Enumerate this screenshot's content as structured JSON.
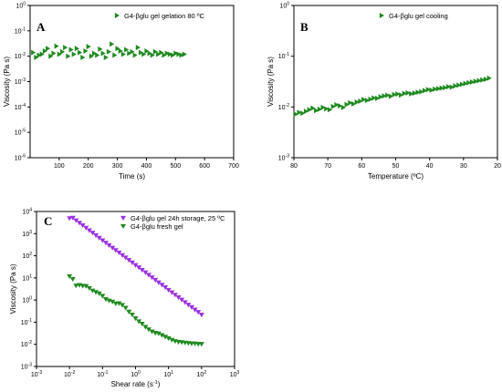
{
  "chart_data": [
    {
      "type": "scatter",
      "panel_label": "A",
      "xlabel": "Time (s)",
      "ylabel": "Viscosity (Pa s)",
      "xlim": [
        0,
        700
      ],
      "ylim": [
        1e-06,
        1
      ],
      "yscale": "log",
      "x_ticks": [
        "100",
        "200",
        "300",
        "400",
        "500",
        "600",
        "700"
      ],
      "y_ticks": [
        "10^-6",
        "10^-5",
        "10^-4",
        "10^-3",
        "10^-2",
        "10^-1",
        "10^0"
      ],
      "legend_position": "top-right",
      "color": "#1f8a1f",
      "marker": "triangle-right",
      "series": [
        {
          "name": "G4-βglu gel gelation 80 ºC",
          "x": [
            10,
            20,
            30,
            40,
            50,
            60,
            70,
            80,
            90,
            100,
            110,
            120,
            130,
            140,
            150,
            160,
            170,
            180,
            190,
            200,
            210,
            220,
            230,
            240,
            250,
            260,
            270,
            280,
            290,
            300,
            310,
            320,
            330,
            340,
            350,
            360,
            370,
            380,
            390,
            400,
            410,
            420,
            430,
            440,
            450,
            460,
            470,
            480,
            490,
            500,
            510,
            520,
            530
          ],
          "y": [
            0.014,
            0.009,
            0.011,
            0.012,
            0.016,
            0.02,
            0.01,
            0.013,
            0.025,
            0.012,
            0.015,
            0.022,
            0.01,
            0.018,
            0.012,
            0.02,
            0.014,
            0.009,
            0.016,
            0.024,
            0.01,
            0.013,
            0.011,
            0.019,
            0.013,
            0.009,
            0.015,
            0.03,
            0.011,
            0.02,
            0.016,
            0.012,
            0.018,
            0.013,
            0.015,
            0.011,
            0.022,
            0.014,
            0.012,
            0.016,
            0.013,
            0.011,
            0.015,
            0.012,
            0.014,
            0.011,
            0.013,
            0.012,
            0.011,
            0.013,
            0.012,
            0.011,
            0.012
          ]
        }
      ]
    },
    {
      "type": "scatter",
      "panel_label": "B",
      "xlabel": "Temperature (ºC)",
      "ylabel": "Viscosity  (Pa s)",
      "xlim": [
        80,
        20
      ],
      "ylim": [
        0.001,
        1
      ],
      "yscale": "log",
      "x_ticks": [
        "80",
        "70",
        "60",
        "50",
        "40",
        "30",
        "20"
      ],
      "y_ticks": [
        "10^-3",
        "10^-2",
        "10^-1",
        "10^0"
      ],
      "legend_position": "top-right",
      "color": "#1f8a1f",
      "marker": "triangle-right",
      "series": [
        {
          "name": "G4-βglu gel cooling",
          "x": [
            79.5,
            78.5,
            77.5,
            76.5,
            75.5,
            74.5,
            73.5,
            72.5,
            71.5,
            70.5,
            69.5,
            68.5,
            67.5,
            66.5,
            65.5,
            64.5,
            63.5,
            62.5,
            61.5,
            60.5,
            59.5,
            58.5,
            57.5,
            56.5,
            55.5,
            54.5,
            53.5,
            52.5,
            51.5,
            50.5,
            49.5,
            48.5,
            47.5,
            46.5,
            45.5,
            44.5,
            43.5,
            42.5,
            41.5,
            40.5,
            39.5,
            38.5,
            37.5,
            36.5,
            35.5,
            34.5,
            33.5,
            32.5,
            31.5,
            30.5,
            29.5,
            28.5,
            27.5,
            26.5,
            25.5,
            24.5,
            23.5,
            22.5
          ],
          "y": [
            0.0072,
            0.0078,
            0.0075,
            0.0082,
            0.0088,
            0.0095,
            0.0085,
            0.009,
            0.0098,
            0.0092,
            0.0088,
            0.0102,
            0.011,
            0.0105,
            0.0098,
            0.0112,
            0.012,
            0.0115,
            0.0125,
            0.013,
            0.014,
            0.0135,
            0.0142,
            0.015,
            0.0148,
            0.0158,
            0.0165,
            0.017,
            0.0162,
            0.0175,
            0.018,
            0.0172,
            0.0185,
            0.019,
            0.0182,
            0.0188,
            0.0195,
            0.02,
            0.021,
            0.022,
            0.0215,
            0.0225,
            0.023,
            0.0235,
            0.024,
            0.025,
            0.0245,
            0.026,
            0.027,
            0.028,
            0.029,
            0.03,
            0.031,
            0.032,
            0.033,
            0.034,
            0.035,
            0.037
          ]
        }
      ]
    },
    {
      "type": "scatter",
      "panel_label": "C",
      "xlabel": "Shear rate (s⁻¹)",
      "ylabel": "Viscosity (Pa s)",
      "xlim": [
        0.001,
        1000
      ],
      "ylim": [
        0.001,
        10000
      ],
      "xscale": "log",
      "yscale": "log",
      "x_ticks": [
        "10^-3",
        "10^-2",
        "10^-1",
        "10^0",
        "10^1",
        "10^2",
        "10^3"
      ],
      "y_ticks": [
        "10^-3",
        "10^-2",
        "10^-1",
        "10^0",
        "10^1",
        "10^2",
        "10^3",
        "10^4"
      ],
      "legend_position": "top-right",
      "marker": "triangle-down",
      "series": [
        {
          "name": "G4-βglu gel 24h storage, 25 ºC",
          "color": "#9b30e0",
          "x": [
            0.01,
            0.0126,
            0.0158,
            0.02,
            0.0251,
            0.0316,
            0.0398,
            0.0501,
            0.0631,
            0.0794,
            0.1,
            0.126,
            0.158,
            0.2,
            0.251,
            0.316,
            0.398,
            0.501,
            0.631,
            0.794,
            1,
            1.26,
            1.58,
            2,
            2.51,
            3.16,
            3.98,
            5.01,
            6.31,
            7.94,
            10,
            12.6,
            15.8,
            20,
            25.1,
            31.6,
            39.8,
            50.1,
            63.1,
            79.4,
            100
          ],
          "y": [
            5000,
            5200,
            4000,
            3100,
            2400,
            1850,
            1420,
            1100,
            850,
            650,
            500,
            390,
            300,
            230,
            180,
            140,
            107,
            83,
            64,
            50,
            38,
            30,
            23,
            17.8,
            13.8,
            10.6,
            8.2,
            6.3,
            4.9,
            3.8,
            2.9,
            2.25,
            1.74,
            1.34,
            1.04,
            0.8,
            0.62,
            0.48,
            0.37,
            0.29,
            0.22
          ]
        },
        {
          "name": "G4-βglu fresh gel",
          "color": "#1f8a1f",
          "x": [
            0.01,
            0.0126,
            0.0158,
            0.02,
            0.0251,
            0.0316,
            0.0398,
            0.0501,
            0.0631,
            0.0794,
            0.1,
            0.126,
            0.158,
            0.2,
            0.251,
            0.316,
            0.398,
            0.501,
            0.631,
            0.794,
            1,
            1.26,
            1.58,
            2,
            2.51,
            3.16,
            3.98,
            5.01,
            6.31,
            7.94,
            10,
            12.6,
            15.8,
            20,
            25.1,
            31.6,
            39.8,
            50.1,
            63.1,
            79.4,
            100
          ],
          "y": [
            12,
            9,
            4.5,
            4.8,
            4.4,
            4.3,
            3.5,
            2.7,
            2.3,
            2.0,
            1.55,
            1.1,
            0.95,
            0.85,
            0.7,
            0.72,
            0.6,
            0.45,
            0.3,
            0.22,
            0.15,
            0.11,
            0.085,
            0.062,
            0.048,
            0.038,
            0.033,
            0.031,
            0.026,
            0.022,
            0.019,
            0.016,
            0.014,
            0.013,
            0.0125,
            0.012,
            0.0115,
            0.011,
            0.011,
            0.0105,
            0.0105
          ]
        }
      ]
    }
  ]
}
